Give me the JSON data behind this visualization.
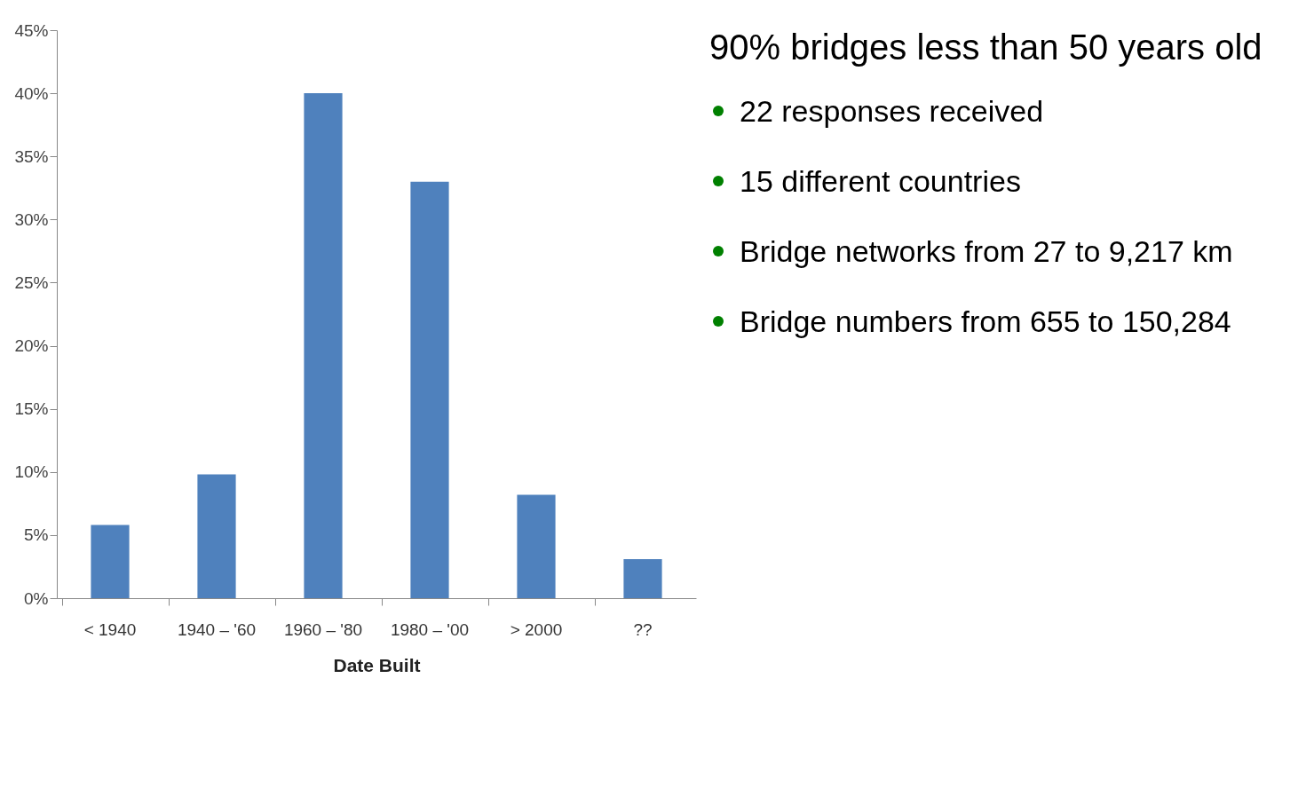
{
  "chart_data": {
    "type": "bar",
    "xlabel": "Date Built",
    "categories": [
      "< 1940",
      "1940 – '60",
      "1960 – '80",
      "1980 – '00",
      "> 2000",
      "??"
    ],
    "values": [
      5.8,
      9.8,
      40,
      33,
      8.2,
      3.1
    ],
    "color": "#4f81bd",
    "ylim": [
      0,
      45
    ],
    "yticks": [
      {
        "value": 0,
        "label": "0%"
      },
      {
        "value": 5,
        "label": "5%"
      },
      {
        "value": 10,
        "label": "10%"
      },
      {
        "value": 15,
        "label": "15%"
      },
      {
        "value": 20,
        "label": "20%"
      },
      {
        "value": 25,
        "label": "25%"
      },
      {
        "value": 30,
        "label": "30%"
      },
      {
        "value": 35,
        "label": "35%"
      },
      {
        "value": 40,
        "label": "40%"
      },
      {
        "value": 45,
        "label": "45%"
      }
    ],
    "grid": false,
    "legend": false,
    "annotations": [
      "22 responses received",
      "15 different countries",
      "Bridge networks from 27 to 9,217 km",
      "Bridge numbers from 655 to 150,284",
      "90% bridges less than 50 years old"
    ]
  }
}
